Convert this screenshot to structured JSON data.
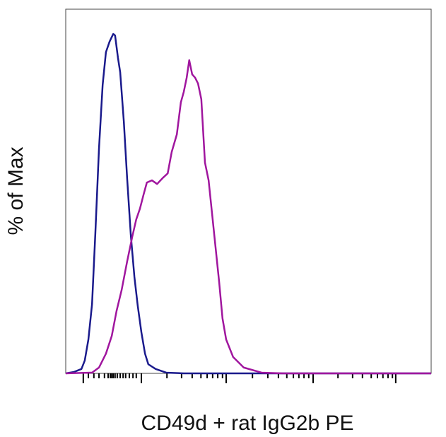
{
  "chart_data": {
    "type": "line",
    "xlabel": "CD49d + rat IgG2b PE",
    "ylabel": "% of Max",
    "xlim": [
      0,
      100
    ],
    "ylim": [
      0,
      100
    ],
    "xticks": [
      4.8,
      20.7,
      43.9,
      67.7,
      90.3
    ],
    "xminorticks": [
      6.2,
      7.7,
      9.1,
      10.6,
      11.6,
      12.2,
      12.6,
      13.0,
      13.5,
      14.1,
      14.9,
      15.7,
      16.4,
      17.4,
      18.4,
      19.3,
      27.7,
      31.7,
      34.6,
      37.0,
      38.7,
      40.2,
      41.6,
      42.9,
      51.1,
      55.3,
      58.2,
      60.5,
      62.3,
      63.8,
      65.2,
      66.5,
      74.5,
      78.5,
      81.2,
      83.6,
      85.3,
      86.8,
      88.2,
      89.4
    ],
    "series": [
      {
        "color": "#1a1a8c",
        "x": [
          0,
          2.3,
          4.3,
          5.2,
          6.2,
          7.2,
          8.1,
          9.1,
          10.1,
          11.0,
          12.0,
          13.0,
          13.5,
          14.3,
          14.9,
          15.9,
          16.8,
          17.8,
          18.8,
          19.7,
          20.7,
          21.7,
          22.6,
          24.6,
          27.5,
          32.3,
          100
        ],
        "values": [
          0,
          0.4,
          1.2,
          3.5,
          9.3,
          19.0,
          38.4,
          61.7,
          79.2,
          88.2,
          91.1,
          93.2,
          92.8,
          86.6,
          82.7,
          69.1,
          53.6,
          38.1,
          26.4,
          18.6,
          11.3,
          5.4,
          2.5,
          1.2,
          0.2,
          0,
          0
        ]
      },
      {
        "color": "#a0169e",
        "x": [
          0,
          7.2,
          9.1,
          11.0,
          12.6,
          13.9,
          15.3,
          16.8,
          18.2,
          19.3,
          20.3,
          21.3,
          22.2,
          23.6,
          25.0,
          26.5,
          27.9,
          29.0,
          30.4,
          31.5,
          32.3,
          33.1,
          33.8,
          34.6,
          35.4,
          36.2,
          37.1,
          38.1,
          39.1,
          40.0,
          41.0,
          42.0,
          42.9,
          43.9,
          45.8,
          48.7,
          53.6,
          59.4,
          100
        ],
        "values": [
          0,
          0.2,
          1.6,
          5.4,
          10.3,
          17.1,
          22.9,
          30.7,
          37.5,
          42.3,
          45.2,
          49.1,
          52.4,
          53.0,
          52.0,
          53.6,
          54.9,
          60.8,
          65.6,
          74.4,
          77.3,
          81.2,
          86.0,
          82.1,
          81.2,
          79.6,
          75.3,
          57.9,
          53.0,
          44.3,
          34.6,
          24.9,
          15.1,
          9.3,
          4.5,
          1.6,
          0.2,
          0,
          0
        ]
      }
    ]
  }
}
